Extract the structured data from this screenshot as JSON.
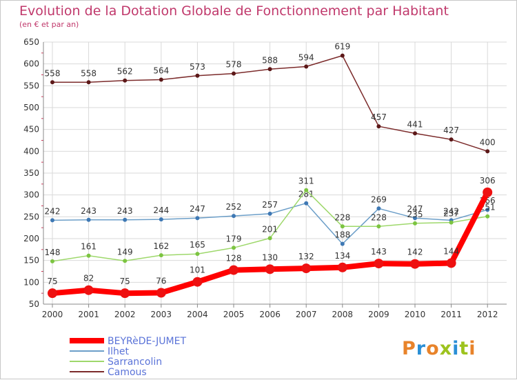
{
  "title": "Evolution de la Dotation Globale de Fonctionnement par Habitant",
  "subtitle": "(en € et par an)",
  "logo": {
    "text": "Proxiti",
    "colors": [
      "#e8832a",
      "#2a8fd6",
      "#e8832a",
      "#9dc31e",
      "#2a8fd6",
      "#9dc31e",
      "#e8832a"
    ]
  },
  "colors": {
    "accent": "#c0386b",
    "grid": "#d9d9d9",
    "axis": "#888888"
  },
  "chart_data": {
    "type": "line",
    "title": "Evolution de la Dotation Globale de Fonctionnement par Habitant",
    "ylabel": "(en € et par an)",
    "xlabel": "",
    "categories": [
      "2000",
      "2001",
      "2002",
      "2003",
      "2004",
      "2005",
      "2006",
      "2007",
      "2008",
      "2009",
      "2010",
      "2011",
      "2012"
    ],
    "ylim": [
      50,
      650
    ],
    "yticks": [
      50,
      100,
      150,
      200,
      250,
      300,
      350,
      400,
      450,
      500,
      550,
      600,
      650
    ],
    "grid": true,
    "legend": "bottom-left",
    "series": [
      {
        "name": "BEYRèDE-JUMET",
        "color": "#ff0000",
        "point_color": "#ee1111",
        "width": 8,
        "marker": 7,
        "values": [
          75,
          82,
          75,
          76,
          101,
          128,
          130,
          132,
          134,
          143,
          142,
          144,
          306
        ],
        "labels": [
          "75",
          "82",
          "75",
          "76",
          "101",
          "128",
          "130",
          "132",
          "134",
          "143",
          "142",
          "144",
          "306"
        ]
      },
      {
        "name": "Ilhet",
        "color": "#6b9ec8",
        "point_color": "#3e78b4",
        "width": 1.5,
        "marker": 3,
        "values": [
          242,
          243,
          243,
          244,
          247,
          252,
          257,
          281,
          188,
          269,
          247,
          242,
          266
        ],
        "labels": [
          "242",
          "243",
          "243",
          "244",
          "247",
          "252",
          "257",
          "281",
          "188",
          "269",
          "247",
          "242",
          "266"
        ]
      },
      {
        "name": "Sarrancolin",
        "color": "#9ed86b",
        "point_color": "#7cc441",
        "width": 1.5,
        "marker": 3,
        "values": [
          148,
          161,
          149,
          162,
          165,
          179,
          201,
          311,
          228,
          228,
          235,
          237,
          251
        ],
        "labels": [
          "148",
          "161",
          "149",
          "162",
          "165",
          "179",
          "201",
          "311",
          "228",
          "228",
          "235",
          "237",
          "251"
        ]
      },
      {
        "name": "Camous",
        "color": "#7b2a2a",
        "point_color": "#5c1818",
        "width": 1.5,
        "marker": 3,
        "values": [
          558,
          558,
          562,
          564,
          573,
          578,
          588,
          594,
          619,
          457,
          441,
          427,
          400
        ],
        "labels": [
          "558",
          "558",
          "562",
          "564",
          "573",
          "578",
          "588",
          "594",
          "619",
          "457",
          "441",
          "427",
          "400"
        ]
      }
    ]
  }
}
